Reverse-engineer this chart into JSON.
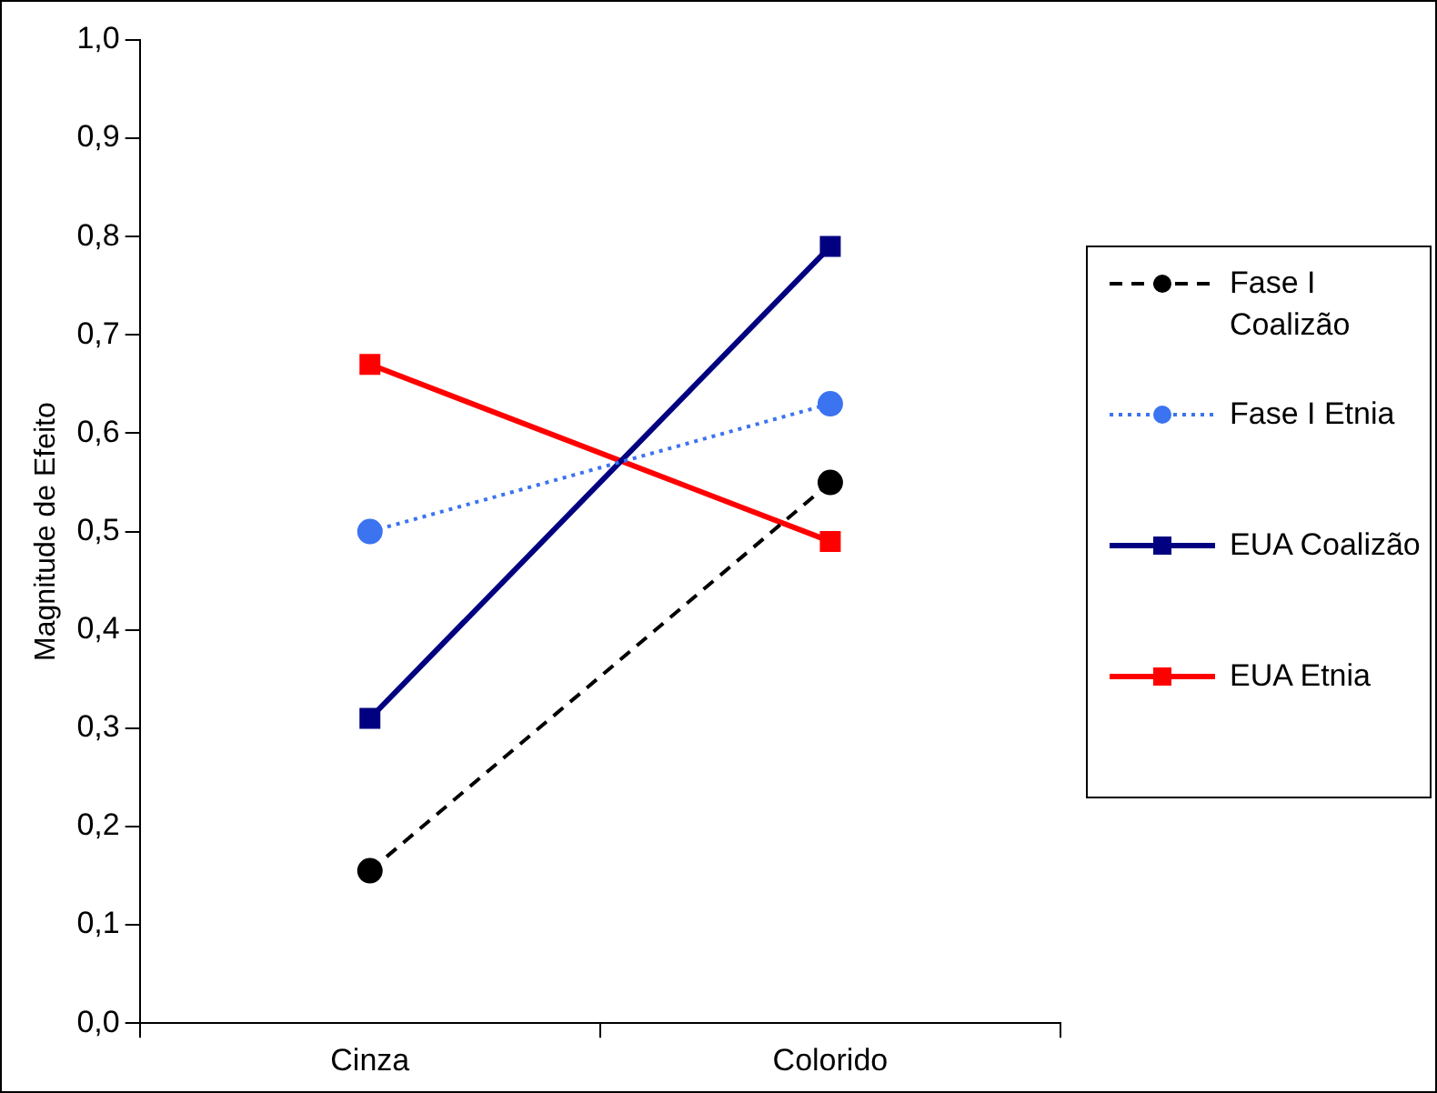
{
  "chart_data": {
    "type": "line",
    "ylabel": "Magnitude de Efeito",
    "categories": [
      "Cinza",
      "Colorido"
    ],
    "ylim": [
      0,
      1
    ],
    "yticks": [
      {
        "value": 0,
        "label": "0,0"
      },
      {
        "value": 0.1,
        "label": "0,1"
      },
      {
        "value": 0.2,
        "label": "0,2"
      },
      {
        "value": 0.3,
        "label": "0,3"
      },
      {
        "value": 0.4,
        "label": "0,4"
      },
      {
        "value": 0.5,
        "label": "0,5"
      },
      {
        "value": 0.6,
        "label": "0,6"
      },
      {
        "value": 0.7,
        "label": "0,7"
      },
      {
        "value": 0.8,
        "label": "0,8"
      },
      {
        "value": 0.9,
        "label": "0,9"
      },
      {
        "value": 1,
        "label": "1,0"
      }
    ],
    "grid": false,
    "legend": "right",
    "series": [
      {
        "name": "Fase I Coalizão",
        "color": "#000000",
        "values": [
          0.155,
          0.55
        ],
        "marker": "circle",
        "line_style": "dashed"
      },
      {
        "name": "Fase I Etnia",
        "color": "#3b73f0",
        "values": [
          0.5,
          0.63
        ],
        "marker": "circle",
        "line_style": "dotted"
      },
      {
        "name": "EUA Coalizão",
        "color": "#000080",
        "values": [
          0.31,
          0.79
        ],
        "marker": "square",
        "line_style": "solid"
      },
      {
        "name": "EUA Etnia",
        "color": "#ff0000",
        "values": [
          0.67,
          0.49
        ],
        "marker": "square",
        "line_style": "solid"
      }
    ]
  }
}
